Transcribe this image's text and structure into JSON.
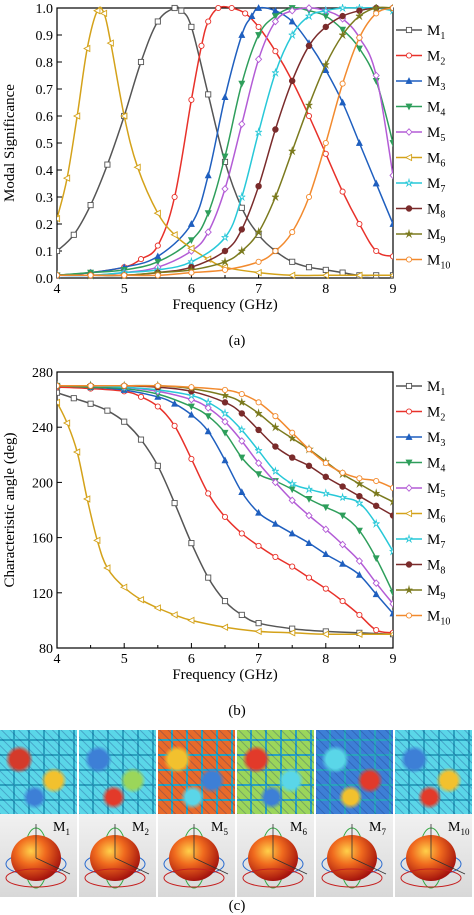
{
  "chart_data": [
    {
      "type": "line",
      "panel": "(a)",
      "xlabel": "Frequency (GHz)",
      "ylabel": "Modal Significance",
      "xlim": [
        4,
        9
      ],
      "ylim": [
        0,
        1.0
      ],
      "xticks": [
        "4",
        "5",
        "6",
        "7",
        "8",
        "9"
      ],
      "yticks": [
        "0.0",
        "0.1",
        "0.2",
        "0.3",
        "0.4",
        "0.5",
        "0.6",
        "0.7",
        "0.8",
        "0.9",
        "1.0"
      ],
      "legend_position": "right",
      "series": [
        {
          "name": "M1",
          "color": "#555555",
          "marker": "square",
          "x": [
            4.0,
            4.25,
            4.5,
            4.75,
            5.0,
            5.25,
            5.5,
            5.75,
            5.85,
            6.0,
            6.25,
            6.5,
            6.75,
            7.0,
            7.25,
            7.5,
            7.75,
            8.0,
            8.25,
            8.5,
            8.75,
            9.0
          ],
          "y": [
            0.1,
            0.16,
            0.27,
            0.42,
            0.6,
            0.8,
            0.95,
            1.0,
            0.99,
            0.93,
            0.68,
            0.43,
            0.26,
            0.16,
            0.1,
            0.06,
            0.04,
            0.03,
            0.02,
            0.01,
            0.01,
            0.01
          ]
        },
        {
          "name": "M2",
          "color": "#e8312a",
          "marker": "circle",
          "x": [
            4.0,
            4.5,
            5.0,
            5.25,
            5.5,
            5.75,
            6.0,
            6.15,
            6.25,
            6.4,
            6.6,
            6.8,
            7.0,
            7.25,
            7.5,
            7.75,
            8.0,
            8.25,
            8.5,
            8.75,
            9.0
          ],
          "y": [
            0.01,
            0.02,
            0.04,
            0.07,
            0.12,
            0.3,
            0.66,
            0.86,
            0.95,
            1.0,
            1.0,
            0.98,
            0.93,
            0.84,
            0.73,
            0.6,
            0.46,
            0.32,
            0.2,
            0.1,
            0.08
          ]
        },
        {
          "name": "M3",
          "color": "#1f5fbf",
          "marker": "triangle",
          "x": [
            4.0,
            4.5,
            5.0,
            5.5,
            6.0,
            6.25,
            6.5,
            6.75,
            6.9,
            7.0,
            7.25,
            7.5,
            7.75,
            8.0,
            8.25,
            8.5,
            8.75,
            9.0
          ],
          "y": [
            0.01,
            0.02,
            0.04,
            0.08,
            0.2,
            0.38,
            0.67,
            0.9,
            0.97,
            1.0,
            0.99,
            0.95,
            0.87,
            0.77,
            0.65,
            0.5,
            0.35,
            0.2
          ]
        },
        {
          "name": "M4",
          "color": "#2e9e5b",
          "marker": "down-triangle",
          "x": [
            4.0,
            4.5,
            5.0,
            5.5,
            6.0,
            6.25,
            6.5,
            6.75,
            7.0,
            7.25,
            7.5,
            7.75,
            8.0,
            8.25,
            8.5,
            8.75,
            9.0
          ],
          "y": [
            0.01,
            0.02,
            0.03,
            0.06,
            0.14,
            0.24,
            0.45,
            0.72,
            0.9,
            0.97,
            1.0,
            0.99,
            0.97,
            0.92,
            0.85,
            0.73,
            0.5
          ]
        },
        {
          "name": "M5",
          "color": "#b35cd6",
          "marker": "diamond",
          "x": [
            4.0,
            4.5,
            5.0,
            5.5,
            6.0,
            6.25,
            6.5,
            6.75,
            7.0,
            7.25,
            7.5,
            7.75,
            8.0,
            8.25,
            8.5,
            8.75,
            9.0
          ],
          "y": [
            0.01,
            0.01,
            0.02,
            0.04,
            0.1,
            0.17,
            0.33,
            0.57,
            0.81,
            0.95,
            0.99,
            1.0,
            0.99,
            0.96,
            0.89,
            0.75,
            0.38
          ]
        },
        {
          "name": "M6",
          "color": "#d4a21a",
          "marker": "left-triangle",
          "x": [
            4.0,
            4.15,
            4.3,
            4.45,
            4.6,
            4.7,
            4.8,
            5.0,
            5.2,
            5.5,
            5.75,
            6.0,
            6.25,
            6.5,
            7.0,
            7.5,
            8.0,
            8.5,
            9.0
          ],
          "y": [
            0.22,
            0.37,
            0.6,
            0.85,
            0.99,
            0.98,
            0.87,
            0.6,
            0.41,
            0.24,
            0.16,
            0.11,
            0.07,
            0.04,
            0.02,
            0.01,
            0.01,
            0.01,
            0.01
          ]
        },
        {
          "name": "M7",
          "color": "#27c8d8",
          "marker": "star",
          "x": [
            4.0,
            4.5,
            5.0,
            5.5,
            6.0,
            6.5,
            6.75,
            7.0,
            7.25,
            7.5,
            7.75,
            8.0,
            8.25,
            8.5,
            8.75,
            9.0
          ],
          "y": [
            0.01,
            0.01,
            0.02,
            0.03,
            0.06,
            0.15,
            0.3,
            0.54,
            0.76,
            0.9,
            0.97,
            0.99,
            1.0,
            1.0,
            1.0,
            0.99
          ]
        },
        {
          "name": "M8",
          "color": "#7a2b2b",
          "marker": "filled-circle",
          "x": [
            4.0,
            4.5,
            5.0,
            5.5,
            6.0,
            6.5,
            6.75,
            7.0,
            7.25,
            7.5,
            7.75,
            8.0,
            8.25,
            8.5,
            8.75,
            9.0
          ],
          "y": [
            0.01,
            0.01,
            0.01,
            0.02,
            0.04,
            0.1,
            0.18,
            0.34,
            0.55,
            0.73,
            0.86,
            0.93,
            0.97,
            0.99,
            1.0,
            1.0
          ]
        },
        {
          "name": "M9",
          "color": "#7b7a1e",
          "marker": "filled-star",
          "x": [
            4.0,
            4.5,
            5.0,
            5.5,
            6.0,
            6.5,
            6.75,
            7.0,
            7.25,
            7.5,
            7.75,
            8.0,
            8.25,
            8.5,
            8.75,
            9.0
          ],
          "y": [
            0.01,
            0.01,
            0.01,
            0.02,
            0.03,
            0.06,
            0.1,
            0.17,
            0.3,
            0.47,
            0.64,
            0.79,
            0.9,
            0.97,
            1.0,
            1.0
          ]
        },
        {
          "name": "M10",
          "color": "#f28a2e",
          "marker": "circle",
          "x": [
            4.0,
            4.5,
            5.0,
            5.5,
            6.0,
            6.5,
            7.0,
            7.25,
            7.5,
            7.75,
            8.0,
            8.25,
            8.5,
            8.75,
            9.0
          ],
          "y": [
            0.01,
            0.01,
            0.01,
            0.01,
            0.02,
            0.03,
            0.06,
            0.1,
            0.17,
            0.3,
            0.5,
            0.72,
            0.89,
            0.98,
            1.0
          ]
        }
      ]
    },
    {
      "type": "line",
      "panel": "(b)",
      "xlabel": "Frequency (GHz)",
      "ylabel": "Characteristic angle (deg)",
      "xlim": [
        4,
        9
      ],
      "ylim": [
        80,
        280
      ],
      "xticks": [
        "4",
        "5",
        "6",
        "7",
        "8",
        "9"
      ],
      "yticks": [
        "80",
        "120",
        "160",
        "200",
        "240",
        "280"
      ],
      "legend_position": "right",
      "series": [
        {
          "name": "M1",
          "color": "#555555",
          "marker": "square",
          "x": [
            4.0,
            4.25,
            4.5,
            4.75,
            5.0,
            5.25,
            5.5,
            5.75,
            6.0,
            6.25,
            6.5,
            6.75,
            7.0,
            7.5,
            8.0,
            8.5,
            9.0
          ],
          "y": [
            265,
            261,
            257,
            252,
            244,
            231,
            212,
            185,
            156,
            131,
            114,
            104,
            98,
            94,
            92,
            91,
            90
          ]
        },
        {
          "name": "M2",
          "color": "#e8312a",
          "marker": "circle",
          "x": [
            4.0,
            4.5,
            5.0,
            5.25,
            5.5,
            5.75,
            6.0,
            6.25,
            6.5,
            6.75,
            7.0,
            7.25,
            7.5,
            7.75,
            8.0,
            8.25,
            8.5,
            8.75,
            9.0
          ],
          "y": [
            269,
            268,
            266,
            262,
            255,
            241,
            217,
            192,
            175,
            163,
            154,
            146,
            139,
            131,
            123,
            114,
            104,
            93,
            91
          ]
        },
        {
          "name": "M3",
          "color": "#1f5fbf",
          "marker": "triangle",
          "x": [
            4.0,
            4.5,
            5.0,
            5.5,
            5.75,
            6.0,
            6.25,
            6.5,
            6.75,
            7.0,
            7.25,
            7.5,
            7.75,
            8.0,
            8.25,
            8.5,
            8.75,
            9.0
          ],
          "y": [
            270,
            269,
            267,
            262,
            257,
            249,
            237,
            216,
            193,
            178,
            170,
            163,
            156,
            148,
            141,
            133,
            119,
            105
          ]
        },
        {
          "name": "M4",
          "color": "#2e9e5b",
          "marker": "down-triangle",
          "x": [
            4.0,
            4.5,
            5.0,
            5.5,
            6.0,
            6.25,
            6.5,
            6.75,
            7.0,
            7.25,
            7.5,
            7.75,
            8.0,
            8.25,
            8.5,
            8.75,
            9.0
          ],
          "y": [
            270,
            269,
            268,
            264,
            255,
            248,
            236,
            218,
            206,
            201,
            195,
            188,
            182,
            176,
            165,
            145,
            120
          ]
        },
        {
          "name": "M5",
          "color": "#b35cd6",
          "marker": "diamond",
          "x": [
            4.0,
            4.5,
            5.0,
            5.5,
            6.0,
            6.25,
            6.5,
            6.75,
            7.0,
            7.25,
            7.5,
            7.75,
            8.0,
            8.25,
            8.5,
            8.75,
            9.0
          ],
          "y": [
            270,
            270,
            269,
            266,
            260,
            254,
            244,
            230,
            214,
            200,
            187,
            176,
            166,
            155,
            143,
            127,
            112
          ]
        },
        {
          "name": "M6",
          "color": "#d4a21a",
          "marker": "left-triangle",
          "x": [
            4.0,
            4.15,
            4.3,
            4.45,
            4.6,
            4.75,
            5.0,
            5.25,
            5.5,
            5.75,
            6.0,
            6.5,
            7.0,
            7.5,
            8.0,
            8.5,
            9.0
          ],
          "y": [
            258,
            243,
            222,
            188,
            158,
            138,
            124,
            115,
            109,
            104,
            100,
            95,
            92,
            91,
            90,
            90,
            90
          ]
        },
        {
          "name": "M7",
          "color": "#27c8d8",
          "marker": "star",
          "x": [
            4.0,
            4.5,
            5.0,
            5.5,
            6.0,
            6.25,
            6.5,
            6.75,
            7.0,
            7.25,
            7.5,
            7.75,
            8.0,
            8.25,
            8.5,
            8.75,
            9.0
          ],
          "y": [
            270,
            270,
            269,
            267,
            263,
            258,
            250,
            238,
            223,
            208,
            199,
            195,
            192,
            189,
            185,
            170,
            150
          ]
        },
        {
          "name": "M8",
          "color": "#7a2b2b",
          "marker": "filled-circle",
          "x": [
            4.0,
            4.5,
            5.0,
            5.5,
            6.0,
            6.5,
            6.75,
            7.0,
            7.25,
            7.5,
            7.75,
            8.0,
            8.25,
            8.5,
            8.75,
            9.0
          ],
          "y": [
            270,
            270,
            270,
            269,
            266,
            258,
            250,
            238,
            226,
            218,
            212,
            204,
            197,
            190,
            183,
            176
          ]
        },
        {
          "name": "M9",
          "color": "#7b7a1e",
          "marker": "filled-star",
          "x": [
            4.0,
            4.5,
            5.0,
            5.5,
            6.0,
            6.5,
            6.75,
            7.0,
            7.25,
            7.5,
            7.75,
            8.0,
            8.25,
            8.5,
            8.75,
            9.0
          ],
          "y": [
            270,
            270,
            270,
            270,
            268,
            263,
            258,
            250,
            240,
            232,
            224,
            215,
            206,
            199,
            192,
            186
          ]
        },
        {
          "name": "M10",
          "color": "#f28a2e",
          "marker": "circle",
          "x": [
            4.0,
            4.5,
            5.0,
            5.5,
            6.0,
            6.5,
            6.75,
            7.0,
            7.25,
            7.5,
            7.75,
            8.0,
            8.25,
            8.5,
            8.75,
            9.0
          ],
          "y": [
            270,
            270,
            270,
            270,
            269,
            267,
            264,
            258,
            248,
            236,
            224,
            214,
            207,
            203,
            201,
            196
          ]
        }
      ]
    }
  ],
  "captions": {
    "a": "(a)",
    "b": "(b)",
    "c": "(c)"
  },
  "panel_c": {
    "pattern_labels": [
      {
        "main": "M",
        "sub": "1"
      },
      {
        "main": "M",
        "sub": "2"
      },
      {
        "main": "M",
        "sub": "5"
      },
      {
        "main": "M",
        "sub": "6"
      },
      {
        "main": "M",
        "sub": "7"
      },
      {
        "main": "M",
        "sub": "10"
      }
    ]
  }
}
